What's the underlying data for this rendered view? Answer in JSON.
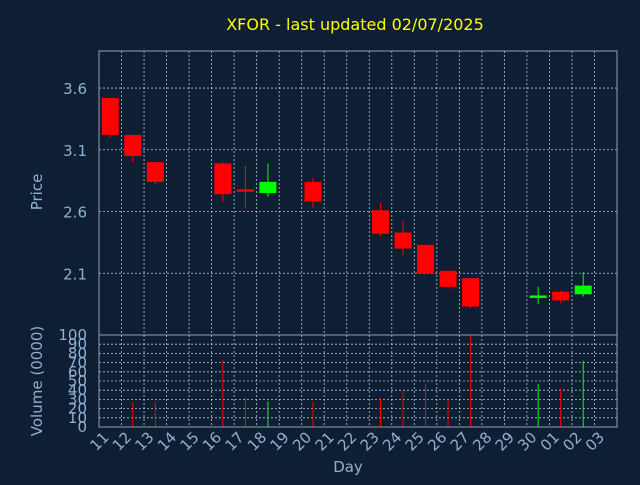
{
  "chart_data": {
    "type": "candlestick",
    "title": "XFOR - last updated 02/07/2025",
    "price_panel": {
      "ylabel": "Price",
      "ylim": [
        1.6,
        3.9
      ],
      "yticks": [
        "3.6",
        "3.1",
        "2.6",
        "2.1"
      ],
      "ytick_values": [
        3.6,
        3.1,
        2.6,
        2.1
      ]
    },
    "volume_panel": {
      "ylabel": "Volume (0000)",
      "ylim": [
        0,
        100
      ],
      "yticks": [
        "0",
        "10",
        "20",
        "30",
        "40",
        "50",
        "60",
        "70",
        "80",
        "90",
        "100"
      ],
      "ytick_values": [
        0,
        10,
        20,
        30,
        40,
        50,
        60,
        70,
        80,
        90,
        100
      ]
    },
    "xlabel": "Day",
    "x_ticks": [
      "11",
      "12",
      "13",
      "14",
      "15",
      "16",
      "17",
      "18",
      "19",
      "20",
      "21",
      "22",
      "23",
      "24",
      "25",
      "26",
      "27",
      "28",
      "29",
      "30",
      "01",
      "02",
      "03"
    ],
    "grid": true,
    "colors": {
      "background": "#0f1f33",
      "up": "#00ff00",
      "down": "#ff0000",
      "title": "#ffff00",
      "axis_text": "#8fb0d0",
      "grid": "#b4c3d2",
      "frame": "#8ea2b8"
    },
    "candles": [
      {
        "day": "11",
        "open": 3.52,
        "high": 3.52,
        "low": 3.2,
        "close": 3.22,
        "volume": 0
      },
      {
        "day": "12",
        "open": 3.22,
        "high": 3.22,
        "low": 3.0,
        "close": 3.05,
        "volume": 27
      },
      {
        "day": "13",
        "open": 3.0,
        "high": 3.0,
        "low": 2.82,
        "close": 2.84,
        "volume": 28
      },
      {
        "day": "16",
        "open": 2.99,
        "high": 3.0,
        "low": 2.68,
        "close": 2.74,
        "volume": 73
      },
      {
        "day": "17",
        "open": 2.78,
        "high": 2.97,
        "low": 2.62,
        "close": 2.76,
        "volume": 32
      },
      {
        "day": "18",
        "open": 2.75,
        "high": 2.99,
        "low": 2.72,
        "close": 2.84,
        "volume": 28
      },
      {
        "day": "20",
        "open": 2.84,
        "high": 2.87,
        "low": 2.63,
        "close": 2.68,
        "volume": 27
      },
      {
        "day": "23",
        "open": 2.61,
        "high": 2.67,
        "low": 2.4,
        "close": 2.42,
        "volume": 32
      },
      {
        "day": "24",
        "open": 2.43,
        "high": 2.53,
        "low": 2.25,
        "close": 2.3,
        "volume": 40
      },
      {
        "day": "25",
        "open": 2.33,
        "high": 2.33,
        "low": 2.09,
        "close": 2.1,
        "volume": 47
      },
      {
        "day": "26",
        "open": 2.12,
        "high": 2.12,
        "low": 1.97,
        "close": 1.99,
        "volume": 31
      },
      {
        "day": "27",
        "open": 2.06,
        "high": 2.06,
        "low": 1.82,
        "close": 1.83,
        "volume": 100
      },
      {
        "day": "30",
        "open": 1.9,
        "high": 1.99,
        "low": 1.85,
        "close": 1.92,
        "volume": 47
      },
      {
        "day": "01",
        "open": 1.95,
        "high": 1.96,
        "low": 1.86,
        "close": 1.88,
        "volume": 42
      },
      {
        "day": "02",
        "open": 1.93,
        "high": 2.11,
        "low": 1.91,
        "close": 2.0,
        "volume": 72
      }
    ]
  }
}
